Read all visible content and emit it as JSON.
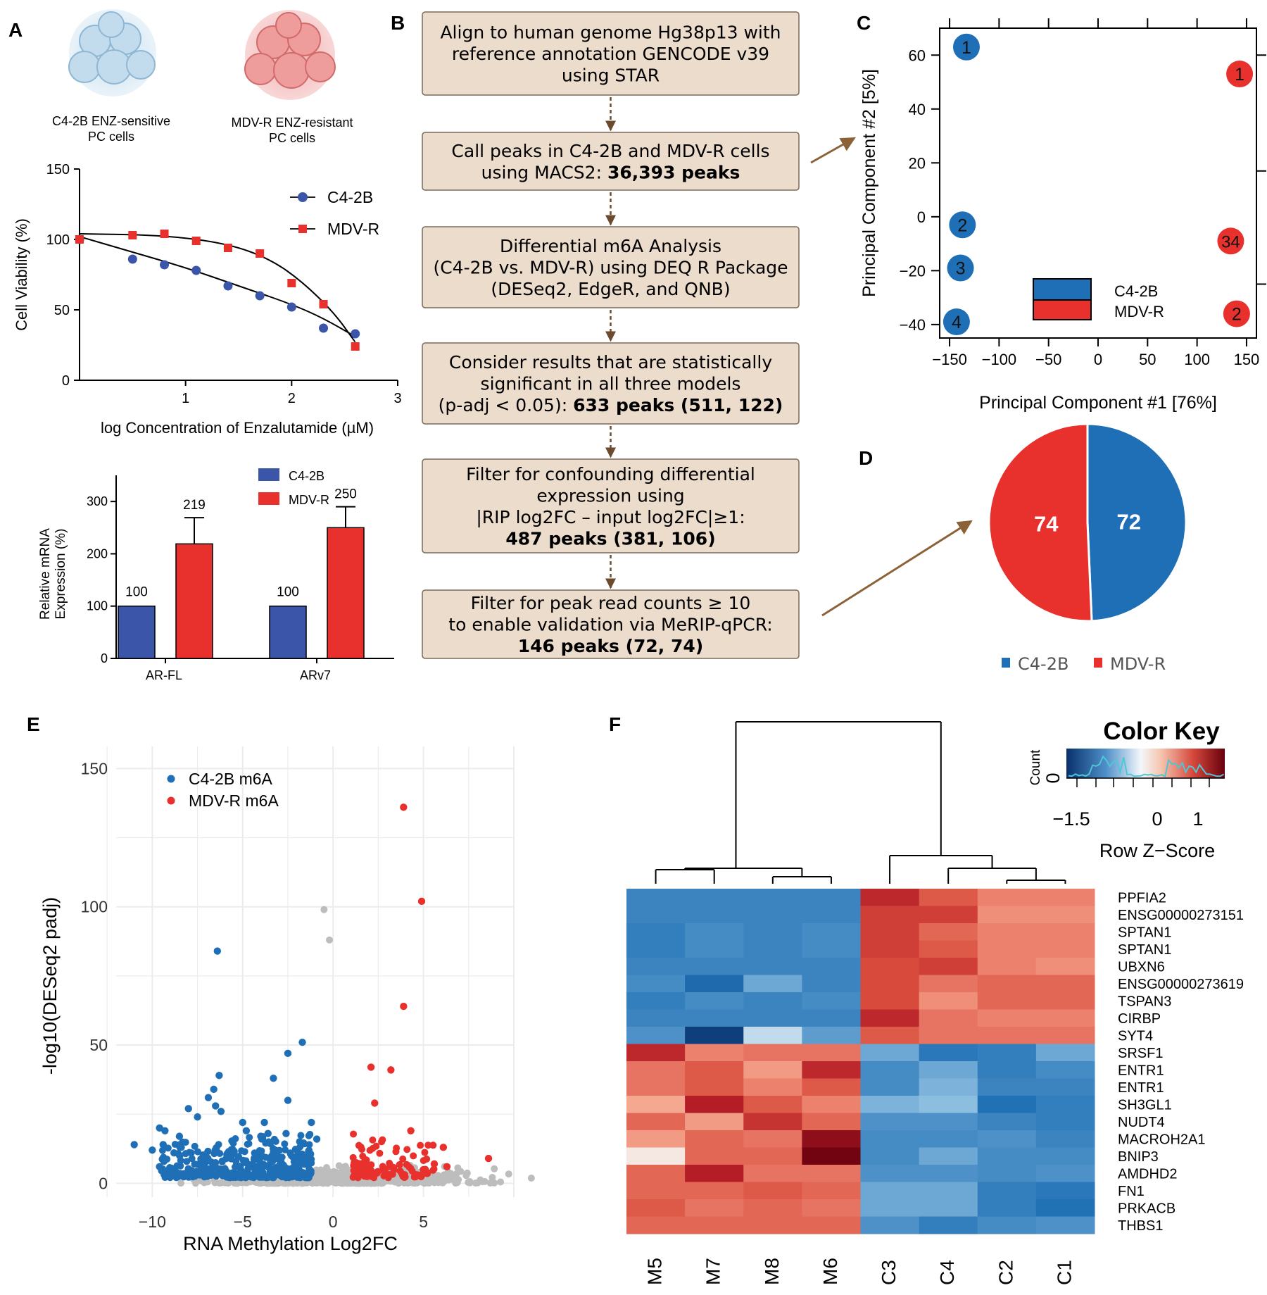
{
  "panel_labels": {
    "a": "A",
    "b": "B",
    "c": "C",
    "d": "D",
    "e": "E",
    "f": "F"
  },
  "colors": {
    "blue": "#1f6fb7",
    "red": "#e8302d",
    "box_fill": "#ecdccc",
    "box_stroke": "#7a6a5a",
    "arrow": "#8b6238",
    "grey": "#bdbdbd"
  },
  "cells": {
    "c42b": "C4-2B ENZ-sensitive\nPC cells",
    "mdvr": "MDV-R ENZ-resistant\nPC cells"
  },
  "chart_data": [
    {
      "type": "line",
      "panel": "A-top",
      "title": "",
      "xlabel": "log Concentration of Enzalutamide (µM)",
      "ylabel": "Cell Viability (%)",
      "xlim": [
        0,
        3
      ],
      "ylim": [
        0,
        150
      ],
      "xticks": [
        "1",
        "2",
        "3"
      ],
      "yticks": [
        "0",
        "50",
        "100",
        "150"
      ],
      "series": [
        {
          "name": "C4-2B",
          "color": "#3b55a8",
          "marker": "circle",
          "x": [
            0,
            0.5,
            0.8,
            1.1,
            1.4,
            1.7,
            2.0,
            2.3,
            2.6
          ],
          "y": [
            100,
            86,
            82,
            78,
            67,
            60,
            52,
            37,
            33
          ],
          "fit": [
            [
              0,
              102
            ],
            [
              0.5,
              91
            ],
            [
              1,
              80
            ],
            [
              1.5,
              67
            ],
            [
              2,
              54
            ],
            [
              2.3,
              44
            ],
            [
              2.6,
              31
            ]
          ]
        },
        {
          "name": "MDV-R",
          "color": "#e8302d",
          "marker": "square",
          "x": [
            0,
            0.5,
            0.8,
            1.1,
            1.4,
            1.7,
            2.0,
            2.3,
            2.6
          ],
          "y": [
            100,
            103,
            104,
            99,
            94,
            90,
            69,
            54,
            24
          ],
          "fit": [
            [
              0,
              104
            ],
            [
              0.8,
              103
            ],
            [
              1.4,
              97
            ],
            [
              1.8,
              86
            ],
            [
              2.1,
              70
            ],
            [
              2.4,
              48
            ],
            [
              2.6,
              27
            ]
          ]
        }
      ]
    },
    {
      "type": "bar",
      "panel": "A-bottom",
      "ylabel": "Relative mRNA\nExpression (%)",
      "ylim": [
        0,
        350
      ],
      "yticks": [
        "0",
        "100",
        "200",
        "300"
      ],
      "categories": [
        "AR-FL",
        "ARv7"
      ],
      "series": [
        {
          "name": "C4-2B",
          "color": "#3b55a8",
          "values": [
            100,
            100
          ],
          "labels": [
            "100",
            "100"
          ],
          "err": [
            0,
            0
          ]
        },
        {
          "name": "MDV-R",
          "color": "#e8302d",
          "values": [
            219,
            250
          ],
          "labels": [
            "219",
            "250"
          ],
          "err": [
            50,
            40
          ]
        }
      ]
    },
    {
      "type": "scatter",
      "panel": "C",
      "xlabel": "Principal Component #1 [76%]",
      "ylabel": "Principal Component #2 [5%]",
      "xlim": [
        -160,
        160
      ],
      "ylim": [
        -45,
        70
      ],
      "xticks": [
        -150,
        -100,
        -50,
        0,
        50,
        100,
        150
      ],
      "xtick_labels": [
        "−150",
        "−100",
        "−50",
        "0",
        "50",
        "100",
        "150"
      ],
      "yticks": [
        -40,
        -20,
        0,
        20,
        40,
        60
      ],
      "ytick_labels": [
        "−40",
        "−20",
        "0",
        "20",
        "40",
        "60"
      ],
      "legend": [
        "C4-2B",
        "MDV-R"
      ],
      "points": [
        {
          "label": "1",
          "group": "C4-2B",
          "x": -133,
          "y": 63
        },
        {
          "label": "2",
          "group": "C4-2B",
          "x": -137,
          "y": -3
        },
        {
          "label": "3",
          "group": "C4-2B",
          "x": -139,
          "y": -19
        },
        {
          "label": "4",
          "group": "C4-2B",
          "x": -143,
          "y": -39
        },
        {
          "label": "1",
          "group": "MDV-R",
          "x": 143,
          "y": 53
        },
        {
          "label": "34",
          "group": "MDV-R",
          "x": 134,
          "y": -9
        },
        {
          "label": "2",
          "group": "MDV-R",
          "x": 140,
          "y": -36
        }
      ]
    },
    {
      "type": "pie",
      "panel": "D",
      "categories": [
        "C4-2B",
        "MDV-R"
      ],
      "values": [
        72,
        74
      ],
      "labels": [
        "72",
        "74"
      ],
      "colors": [
        "#1f6fb7",
        "#e8302d"
      ]
    },
    {
      "type": "scatter",
      "panel": "E",
      "xlabel": "RNA Methylation Log2FC",
      "ylabel": "-log10(DESeq2 padj)",
      "xlim": [
        -12,
        10
      ],
      "ylim": [
        -5,
        158
      ],
      "xticks": [
        -10,
        -5,
        0,
        5
      ],
      "xtick_labels": [
        "−10",
        "−5",
        "0",
        "5"
      ],
      "yticks": [
        0,
        50,
        100,
        150
      ],
      "ytick_labels": [
        "0",
        "50",
        "100",
        "150"
      ],
      "legend": [
        "C4-2B m6A",
        "MDV-R m6A"
      ],
      "highlight": {
        "C4-2B m6A": [
          [
            -6.4,
            84
          ],
          [
            -1.7,
            51
          ],
          [
            -2.5,
            47
          ],
          [
            -6.3,
            39
          ],
          [
            -3.3,
            38
          ],
          [
            -6.6,
            34
          ],
          [
            -6.9,
            31
          ],
          [
            -6.5,
            28
          ],
          [
            -2.5,
            30
          ],
          [
            -6.2,
            26
          ],
          [
            -8.0,
            27
          ],
          [
            -7.5,
            24
          ],
          [
            -5.0,
            22
          ],
          [
            -3.8,
            22
          ],
          [
            -1.2,
            22
          ],
          [
            -11.0,
            14
          ],
          [
            -9.6,
            20
          ],
          [
            -9.3,
            19
          ],
          [
            -9.4,
            14
          ],
          [
            -8.5,
            17
          ],
          [
            -4.8,
            19
          ],
          [
            -4.0,
            17
          ],
          [
            -3.6,
            18
          ],
          [
            -2.6,
            18
          ],
          [
            -0.9,
            16
          ],
          [
            -9.6,
            6
          ],
          [
            -9.2,
            4
          ],
          [
            -10.0,
            12
          ],
          [
            -8.8,
            11
          ],
          [
            -8.4,
            13
          ]
        ],
        "MDV-R m6A": [
          [
            3.9,
            136
          ],
          [
            4.9,
            102
          ],
          [
            3.9,
            64
          ],
          [
            2.1,
            42
          ],
          [
            3.2,
            41
          ],
          [
            2.3,
            29
          ],
          [
            4.3,
            19
          ],
          [
            6.1,
            13
          ],
          [
            8.6,
            9
          ],
          [
            5.6,
            7
          ],
          [
            6.3,
            6
          ],
          [
            5.1,
            5
          ]
        ]
      },
      "grey": [
        [
          -0.5,
          99
        ],
        [
          -0.2,
          88
        ]
      ]
    },
    {
      "type": "heatmap",
      "panel": "F",
      "title": "Color Key",
      "key_ylabel": "Count",
      "key_zero": "0",
      "key_xlabel": "Row Z−Score",
      "key_ticks": [
        "−1.5",
        "0",
        "1"
      ],
      "columns": [
        "M5",
        "M7",
        "M8",
        "M6",
        "C3",
        "C4",
        "C2",
        "C1"
      ],
      "rows": [
        "PPFIA2",
        "ENSG00000273151",
        "SPTAN1",
        "SPTAN1",
        "UBXN6",
        "ENSG00000273619",
        "TSPAN3",
        "CIRBP",
        "SYT4",
        "SRSF1",
        "ENTR1",
        "ENTR1",
        "SH3GL1",
        "NUDT4",
        "MACROH2A1",
        "BNIP3",
        "AMDHD2",
        "FN1",
        "PRKACB",
        "THBS1"
      ],
      "values": [
        [
          -1.0,
          -1.0,
          -1.0,
          -1.0,
          1.5,
          1.1,
          0.8,
          0.8
        ],
        [
          -1.0,
          -1.0,
          -1.0,
          -1.0,
          1.3,
          1.3,
          0.7,
          0.7
        ],
        [
          -1.1,
          -0.9,
          -1.0,
          -0.9,
          1.3,
          1.0,
          0.8,
          0.8
        ],
        [
          -1.1,
          -0.9,
          -1.0,
          -0.9,
          1.3,
          1.1,
          0.8,
          0.8
        ],
        [
          -1.0,
          -1.0,
          -1.0,
          -1.0,
          1.2,
          1.3,
          0.8,
          0.7
        ],
        [
          -0.9,
          -1.4,
          -0.6,
          -1.0,
          1.2,
          0.9,
          1.0,
          1.0
        ],
        [
          -1.1,
          -0.9,
          -1.0,
          -0.9,
          1.2,
          0.7,
          1.0,
          1.0
        ],
        [
          -1.0,
          -1.0,
          -1.0,
          -1.0,
          1.5,
          0.9,
          0.8,
          0.8
        ],
        [
          -0.8,
          -2.0,
          -0.2,
          -0.7,
          1.1,
          0.9,
          0.9,
          0.9
        ],
        [
          1.5,
          0.8,
          0.9,
          0.9,
          -0.6,
          -1.2,
          -1.1,
          -0.6
        ],
        [
          0.9,
          1.1,
          0.6,
          1.5,
          -0.9,
          -0.6,
          -1.1,
          -0.9
        ],
        [
          0.9,
          1.1,
          0.8,
          1.1,
          -0.9,
          -0.5,
          -1.0,
          -1.0
        ],
        [
          0.5,
          1.6,
          1.1,
          0.8,
          -0.5,
          -0.4,
          -1.3,
          -1.1
        ],
        [
          1.0,
          0.6,
          1.4,
          1.0,
          -0.8,
          -0.8,
          -1.0,
          -1.1
        ],
        [
          0.6,
          1.0,
          0.9,
          2.0,
          -0.9,
          -0.9,
          -0.8,
          -1.0
        ],
        [
          0.1,
          1.0,
          1.0,
          2.3,
          -0.9,
          -0.6,
          -0.9,
          -0.9
        ],
        [
          1.0,
          1.6,
          0.9,
          0.9,
          -0.8,
          -0.8,
          -0.9,
          -0.8
        ],
        [
          1.0,
          1.0,
          1.1,
          1.0,
          -0.6,
          -0.6,
          -1.1,
          -1.2
        ],
        [
          1.1,
          0.9,
          1.0,
          0.9,
          -0.6,
          -0.6,
          -1.1,
          -1.3
        ],
        [
          1.0,
          1.0,
          1.0,
          1.0,
          -0.8,
          -1.1,
          -0.9,
          -0.8
        ]
      ]
    }
  ],
  "flow": {
    "steps": [
      {
        "lines": [
          {
            "t": "Align to human genome Hg38p13 with"
          },
          {
            "t": "reference annotation GENCODE v39"
          },
          {
            "t": "using STAR"
          }
        ]
      },
      {
        "lines": [
          {
            "t": "Call peaks in C4-2B and MDV-R cells"
          },
          {
            "t": "using MACS2: ",
            "b": "36,393 peaks"
          }
        ]
      },
      {
        "lines": [
          {
            "t": "Differential m6A Analysis"
          },
          {
            "t": "(C4-2B vs. MDV-R) using DEQ R Package"
          },
          {
            "t": "(DESeq2, EdgeR, and QNB)"
          }
        ]
      },
      {
        "lines": [
          {
            "t": "Consider results that are statistically"
          },
          {
            "t": "significant in all three models"
          },
          {
            "t": "(p-adj < 0.05): ",
            "b": "633 peaks (511, 122)"
          }
        ]
      },
      {
        "lines": [
          {
            "t": "Filter for confounding differential"
          },
          {
            "t": "expression using"
          },
          {
            "t": "|RIP log2FC – input log2FC|≥1:"
          },
          {
            "t": "",
            "b": "487 peaks (381, 106)"
          }
        ]
      },
      {
        "lines": [
          {
            "t": "Filter for peak read counts ≥ 10"
          },
          {
            "t": "to enable validation via MeRIP-qPCR:"
          },
          {
            "t": "",
            "b": "146 peaks (72, 74)"
          }
        ]
      }
    ]
  }
}
